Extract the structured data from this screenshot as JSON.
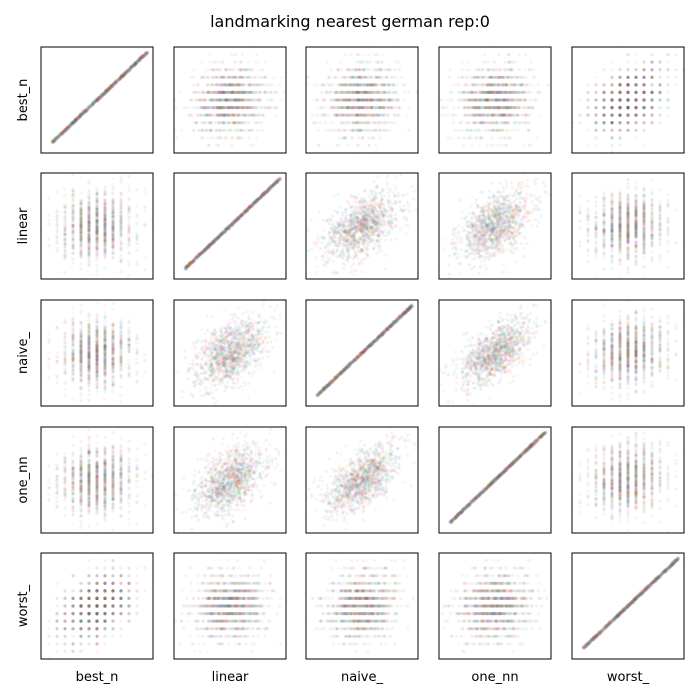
{
  "chart_data": {
    "type": "scatter",
    "title": "landmarking nearest german rep:0",
    "variables": [
      "best_n",
      "linear",
      "naive_",
      "one_nn",
      "worst_"
    ],
    "grid": false,
    "axes_ticks": "hidden",
    "point_alpha": 0.08,
    "palette": [
      "#1f77b4",
      "#ff7f0e",
      "#2ca02c",
      "#d62728",
      "#9467bd",
      "#8c564b",
      "#e377c2",
      "#17becf"
    ],
    "correlation_matrix": [
      [
        1.0,
        0.1,
        0.1,
        0.1,
        0.4
      ],
      [
        0.1,
        1.0,
        0.5,
        0.5,
        0.1
      ],
      [
        0.1,
        0.5,
        1.0,
        0.6,
        0.1
      ],
      [
        0.1,
        0.5,
        0.6,
        1.0,
        0.1
      ],
      [
        0.4,
        0.1,
        0.1,
        0.1,
        1.0
      ]
    ],
    "distribution_note": "best_n and worst_ take discrete values (banded); linear, naive_, one_nn continuous",
    "points_per_panel": 1200
  }
}
